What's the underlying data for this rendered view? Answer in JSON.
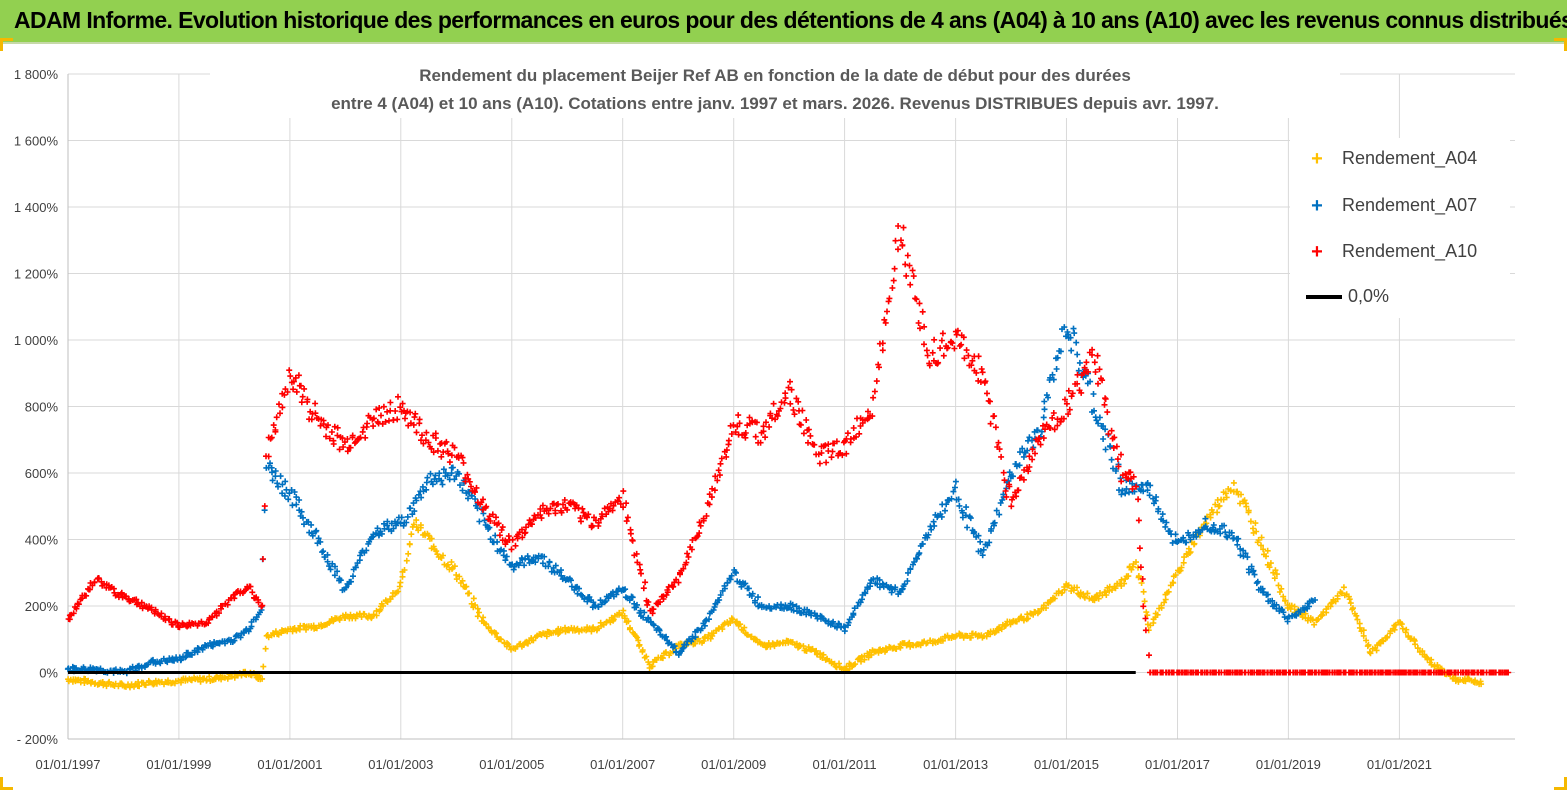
{
  "header": {
    "title": "ADAM Informe. Evolution historique des performances en euros pour des détentions de 4 ans (A04) à 10 ans (A10) avec les revenus connus distribués"
  },
  "chart_data": {
    "type": "scatter",
    "title_line1": "Rendement du placement Beijer Ref AB en fonction de la date de début pour des durées",
    "title_line2": "entre 4 (A04) et 10 ans (A10).  Cotations entre janv. 1997 et mars. 2026. Revenus DISTRIBUES depuis avr. 1997.",
    "x_range": [
      "1997-01-01",
      "2023-02-01"
    ],
    "ylim": [
      -200,
      1800
    ],
    "y_unit": "%",
    "y_ticks": [
      -200,
      0,
      200,
      400,
      600,
      800,
      1000,
      1200,
      1400,
      1600,
      1800
    ],
    "y_tick_labels": [
      "- 200%",
      "0%",
      "200%",
      "400%",
      "600%",
      "800%",
      "1 000%",
      "1 200%",
      "1 400%",
      "1 600%",
      "1 800%"
    ],
    "x_tick_labels": [
      "01/01/1997",
      "01/01/1999",
      "01/01/2001",
      "01/01/2003",
      "01/01/2005",
      "01/01/2007",
      "01/01/2009",
      "01/01/2011",
      "01/01/2013",
      "01/01/2015",
      "01/01/2017",
      "01/01/2019",
      "01/01/2021"
    ],
    "grid": true,
    "legend_position": "top-right",
    "zero_line": {
      "name": "0,0%",
      "value": 0,
      "color": "#000000",
      "x": [
        "1997-01-01",
        "2016-04-01"
      ]
    },
    "series": [
      {
        "name": "Rendement_A04",
        "color": "#ffc000",
        "x": [
          "1997-01-01",
          "1997-07-01",
          "1998-01-01",
          "1998-07-01",
          "1999-01-01",
          "1999-07-01",
          "2000-01-01",
          "2000-04-01",
          "2000-07-01",
          "2000-08-01",
          "2001-01-01",
          "2001-07-01",
          "2002-01-01",
          "2002-07-01",
          "2003-01-01",
          "2003-04-01",
          "2003-07-01",
          "2004-01-01",
          "2004-07-01",
          "2005-01-01",
          "2005-07-01",
          "2006-01-01",
          "2006-07-01",
          "2007-01-01",
          "2007-04-01",
          "2007-07-01",
          "2008-01-01",
          "2008-07-01",
          "2009-01-01",
          "2009-07-01",
          "2010-01-01",
          "2010-07-01",
          "2011-01-01",
          "2011-07-01",
          "2012-01-01",
          "2012-07-01",
          "2013-01-01",
          "2013-07-01",
          "2014-01-01",
          "2014-07-01",
          "2015-01-01",
          "2015-07-01",
          "2016-01-01",
          "2016-04-01",
          "2016-07-01",
          "2017-01-01",
          "2017-07-01",
          "2018-01-01",
          "2018-07-01",
          "2019-01-01",
          "2019-07-01",
          "2020-01-01",
          "2020-07-01",
          "2021-01-01",
          "2021-07-01",
          "2022-01-01",
          "2022-07-01"
        ],
        "values": [
          -20,
          -30,
          -40,
          -30,
          -25,
          -20,
          -10,
          0,
          -20,
          110,
          130,
          140,
          170,
          170,
          260,
          450,
          400,
          300,
          150,
          70,
          110,
          130,
          130,
          180,
          100,
          20,
          80,
          100,
          160,
          80,
          90,
          60,
          10,
          60,
          80,
          90,
          110,
          110,
          150,
          180,
          260,
          220,
          270,
          340,
          130,
          300,
          450,
          570,
          400,
          200,
          150,
          250,
          60,
          150,
          40,
          -20,
          -30
        ]
      },
      {
        "name": "Rendement_A07",
        "color": "#0070c0",
        "x": [
          "1997-01-01",
          "1997-07-01",
          "1998-01-01",
          "1998-07-01",
          "1999-01-01",
          "1999-07-01",
          "2000-01-01",
          "2000-04-01",
          "2000-07-01",
          "2000-08-01",
          "2001-01-01",
          "2001-07-01",
          "2002-01-01",
          "2002-07-01",
          "2003-01-01",
          "2003-04-01",
          "2003-07-01",
          "2004-01-01",
          "2004-07-01",
          "2005-01-01",
          "2005-07-01",
          "2006-01-01",
          "2006-07-01",
          "2007-01-01",
          "2007-07-01",
          "2008-01-01",
          "2008-07-01",
          "2009-01-01",
          "2009-07-01",
          "2010-01-01",
          "2010-07-01",
          "2011-01-01",
          "2011-07-01",
          "2012-01-01",
          "2012-07-01",
          "2013-01-01",
          "2013-07-01",
          "2014-01-01",
          "2014-07-01",
          "2015-01-01",
          "2015-07-01",
          "2016-01-01",
          "2016-07-01",
          "2017-01-01",
          "2017-07-01",
          "2018-01-01",
          "2018-07-01",
          "2019-01-01",
          "2019-07-01"
        ],
        "values": [
          10,
          10,
          0,
          30,
          40,
          80,
          100,
          130,
          200,
          620,
          540,
          400,
          250,
          420,
          450,
          500,
          580,
          600,
          450,
          320,
          350,
          280,
          200,
          250,
          150,
          60,
          150,
          300,
          200,
          200,
          170,
          130,
          280,
          240,
          420,
          550,
          350,
          600,
          720,
          1050,
          800,
          560,
          550,
          380,
          450,
          420,
          250,
          160,
          220
        ]
      },
      {
        "name": "Rendement_A10",
        "color": "#ff0000",
        "x": [
          "1997-01-01",
          "1997-07-01",
          "1998-01-01",
          "1998-07-01",
          "1999-01-01",
          "1999-07-01",
          "2000-01-01",
          "2000-04-01",
          "2000-07-01",
          "2000-08-01",
          "2001-01-01",
          "2001-07-01",
          "2002-01-01",
          "2002-07-01",
          "2003-01-01",
          "2003-07-01",
          "2004-01-01",
          "2004-07-01",
          "2005-01-01",
          "2005-07-01",
          "2006-01-01",
          "2006-07-01",
          "2007-01-01",
          "2007-07-01",
          "2008-01-01",
          "2008-07-01",
          "2009-01-01",
          "2009-07-01",
          "2010-01-01",
          "2010-07-01",
          "2011-01-01",
          "2011-07-01",
          "2012-01-01",
          "2012-07-01",
          "2013-01-01",
          "2013-07-01",
          "2014-01-01",
          "2014-07-01",
          "2015-01-01",
          "2015-07-01",
          "2016-01-01",
          "2016-04-01",
          "2016-07-01",
          "2017-01-01",
          "2018-01-01",
          "2019-01-01",
          "2020-01-01",
          "2021-01-01",
          "2022-01-01",
          "2023-01-01"
        ],
        "values": [
          160,
          280,
          230,
          190,
          140,
          150,
          230,
          260,
          200,
          650,
          900,
          760,
          680,
          760,
          800,
          700,
          650,
          500,
          380,
          480,
          500,
          450,
          530,
          180,
          280,
          480,
          750,
          720,
          850,
          650,
          680,
          800,
          1350,
          950,
          1000,
          900,
          500,
          700,
          800,
          950,
          600,
          560,
          0,
          0,
          0,
          0,
          0,
          0,
          0,
          0
        ]
      }
    ]
  }
}
